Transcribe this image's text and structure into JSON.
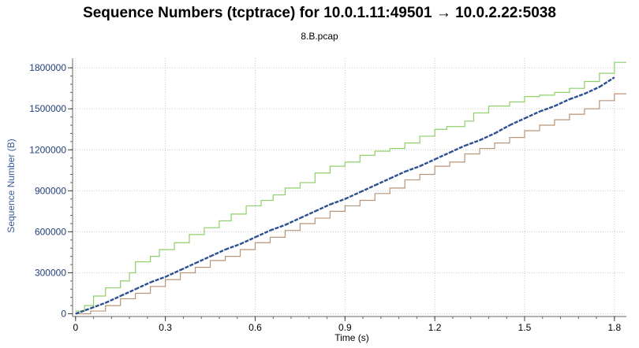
{
  "chart_data": {
    "type": "line",
    "title": "Sequence Numbers (tcptrace) for 10.0.1.11:49501 → 10.0.2.22:5038",
    "subtitle": "8.B.pcap",
    "xlabel": "Time (s)",
    "ylabel": "Sequence Number (B)",
    "xlim": [
      -0.01,
      1.84
    ],
    "ylim": [
      -20000,
      1870000
    ],
    "xticks": [
      0,
      0.3,
      0.6,
      0.9,
      1.2,
      1.5,
      1.8
    ],
    "xtick_labels": [
      "0",
      "0.3",
      "0.6",
      "0.9",
      "1.2",
      "1.5",
      "1.8"
    ],
    "yticks": [
      0,
      300000,
      600000,
      900000,
      1200000,
      1500000,
      1800000
    ],
    "ytick_labels": [
      "0",
      "300000",
      "600000",
      "900000",
      "1200000",
      "1500000",
      "1800000"
    ],
    "grid": true,
    "series": [
      {
        "role": "receive-window",
        "color": "#8fcf6a",
        "points": [
          [
            0,
            20000
          ],
          [
            0.03,
            60000
          ],
          [
            0.06,
            130000
          ],
          [
            0.1,
            190000
          ],
          [
            0.15,
            240000
          ],
          [
            0.18,
            300000
          ],
          [
            0.2,
            380000
          ],
          [
            0.25,
            420000
          ],
          [
            0.28,
            470000
          ],
          [
            0.33,
            520000
          ],
          [
            0.38,
            580000
          ],
          [
            0.43,
            630000
          ],
          [
            0.48,
            680000
          ],
          [
            0.52,
            730000
          ],
          [
            0.57,
            790000
          ],
          [
            0.62,
            830000
          ],
          [
            0.66,
            870000
          ],
          [
            0.7,
            920000
          ],
          [
            0.75,
            960000
          ],
          [
            0.8,
            1030000
          ],
          [
            0.85,
            1080000
          ],
          [
            0.9,
            1110000
          ],
          [
            0.95,
            1160000
          ],
          [
            1.0,
            1190000
          ],
          [
            1.05,
            1210000
          ],
          [
            1.1,
            1250000
          ],
          [
            1.15,
            1300000
          ],
          [
            1.2,
            1350000
          ],
          [
            1.24,
            1370000
          ],
          [
            1.3,
            1410000
          ],
          [
            1.33,
            1470000
          ],
          [
            1.38,
            1520000
          ],
          [
            1.45,
            1550000
          ],
          [
            1.5,
            1590000
          ],
          [
            1.55,
            1600000
          ],
          [
            1.6,
            1620000
          ],
          [
            1.65,
            1650000
          ],
          [
            1.7,
            1700000
          ],
          [
            1.75,
            1760000
          ],
          [
            1.8,
            1840000
          ],
          [
            1.84,
            1840000
          ]
        ]
      },
      {
        "role": "ack",
        "color": "#b89478",
        "points": [
          [
            0,
            0
          ],
          [
            0.05,
            20000
          ],
          [
            0.1,
            60000
          ],
          [
            0.15,
            110000
          ],
          [
            0.2,
            150000
          ],
          [
            0.25,
            200000
          ],
          [
            0.3,
            250000
          ],
          [
            0.35,
            300000
          ],
          [
            0.4,
            340000
          ],
          [
            0.45,
            390000
          ],
          [
            0.5,
            420000
          ],
          [
            0.55,
            470000
          ],
          [
            0.6,
            520000
          ],
          [
            0.65,
            560000
          ],
          [
            0.7,
            610000
          ],
          [
            0.75,
            660000
          ],
          [
            0.8,
            700000
          ],
          [
            0.85,
            750000
          ],
          [
            0.9,
            790000
          ],
          [
            0.95,
            830000
          ],
          [
            1.0,
            880000
          ],
          [
            1.05,
            920000
          ],
          [
            1.1,
            980000
          ],
          [
            1.15,
            1020000
          ],
          [
            1.2,
            1080000
          ],
          [
            1.25,
            1110000
          ],
          [
            1.3,
            1170000
          ],
          [
            1.35,
            1210000
          ],
          [
            1.4,
            1250000
          ],
          [
            1.45,
            1290000
          ],
          [
            1.5,
            1340000
          ],
          [
            1.55,
            1380000
          ],
          [
            1.6,
            1420000
          ],
          [
            1.65,
            1460000
          ],
          [
            1.7,
            1500000
          ],
          [
            1.75,
            1560000
          ],
          [
            1.8,
            1610000
          ],
          [
            1.84,
            1610000
          ]
        ]
      },
      {
        "role": "data-segments",
        "color": "#2b4f8f",
        "points": [
          [
            0,
            0
          ],
          [
            0.05,
            40000
          ],
          [
            0.1,
            80000
          ],
          [
            0.15,
            130000
          ],
          [
            0.2,
            180000
          ],
          [
            0.25,
            230000
          ],
          [
            0.3,
            270000
          ],
          [
            0.35,
            320000
          ],
          [
            0.4,
            370000
          ],
          [
            0.45,
            420000
          ],
          [
            0.5,
            470000
          ],
          [
            0.55,
            510000
          ],
          [
            0.6,
            560000
          ],
          [
            0.65,
            610000
          ],
          [
            0.7,
            650000
          ],
          [
            0.75,
            700000
          ],
          [
            0.8,
            750000
          ],
          [
            0.85,
            800000
          ],
          [
            0.9,
            840000
          ],
          [
            0.95,
            890000
          ],
          [
            1.0,
            940000
          ],
          [
            1.05,
            990000
          ],
          [
            1.1,
            1040000
          ],
          [
            1.15,
            1080000
          ],
          [
            1.2,
            1130000
          ],
          [
            1.25,
            1180000
          ],
          [
            1.3,
            1230000
          ],
          [
            1.35,
            1270000
          ],
          [
            1.4,
            1320000
          ],
          [
            1.45,
            1380000
          ],
          [
            1.5,
            1430000
          ],
          [
            1.55,
            1480000
          ],
          [
            1.6,
            1520000
          ],
          [
            1.65,
            1570000
          ],
          [
            1.7,
            1610000
          ],
          [
            1.75,
            1660000
          ],
          [
            1.8,
            1730000
          ]
        ]
      }
    ]
  }
}
